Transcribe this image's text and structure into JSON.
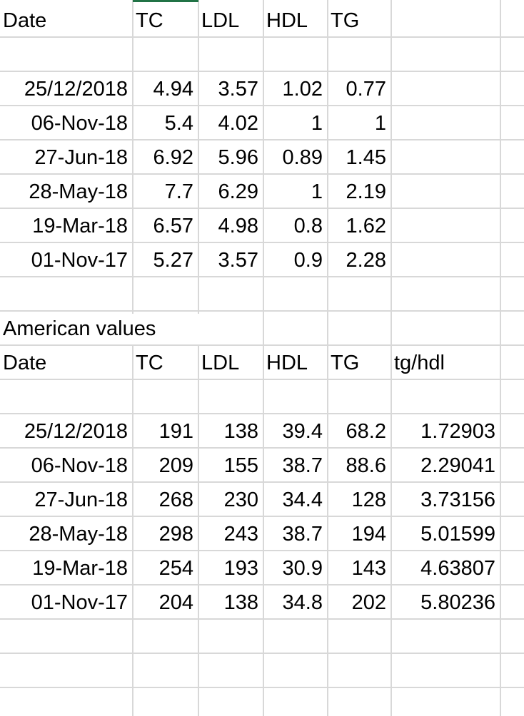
{
  "table1": {
    "headers": [
      "Date",
      "TC",
      "LDL",
      "HDL",
      "TG"
    ],
    "rows": [
      [
        "25/12/2018",
        "4.94",
        "3.57",
        "1.02",
        "0.77"
      ],
      [
        "06-Nov-18",
        "5.4",
        "4.02",
        "1",
        "1"
      ],
      [
        "27-Jun-18",
        "6.92",
        "5.96",
        "0.89",
        "1.45"
      ],
      [
        "28-May-18",
        "7.7",
        "6.29",
        "1",
        "2.19"
      ],
      [
        "19-Mar-18",
        "6.57",
        "4.98",
        "0.8",
        "1.62"
      ],
      [
        "01-Nov-17",
        "5.27",
        "3.57",
        "0.9",
        "2.28"
      ]
    ]
  },
  "section_title": "American values",
  "table2": {
    "headers": [
      "Date",
      "TC",
      "LDL",
      "HDL",
      "TG",
      "tg/hdl"
    ],
    "rows": [
      [
        "25/12/2018",
        "191",
        "138",
        "39.4",
        "68.2",
        "1.72903"
      ],
      [
        "06-Nov-18",
        "209",
        "155",
        "38.7",
        "88.6",
        "2.29041"
      ],
      [
        "27-Jun-18",
        "268",
        "230",
        "34.4",
        "128",
        "3.73156"
      ],
      [
        "28-May-18",
        "298",
        "243",
        "38.7",
        "194",
        "5.01599"
      ],
      [
        "19-Mar-18",
        "254",
        "193",
        "30.9",
        "143",
        "4.63807"
      ],
      [
        "01-Nov-17",
        "204",
        "138",
        "34.8",
        "202",
        "5.80236"
      ]
    ]
  }
}
